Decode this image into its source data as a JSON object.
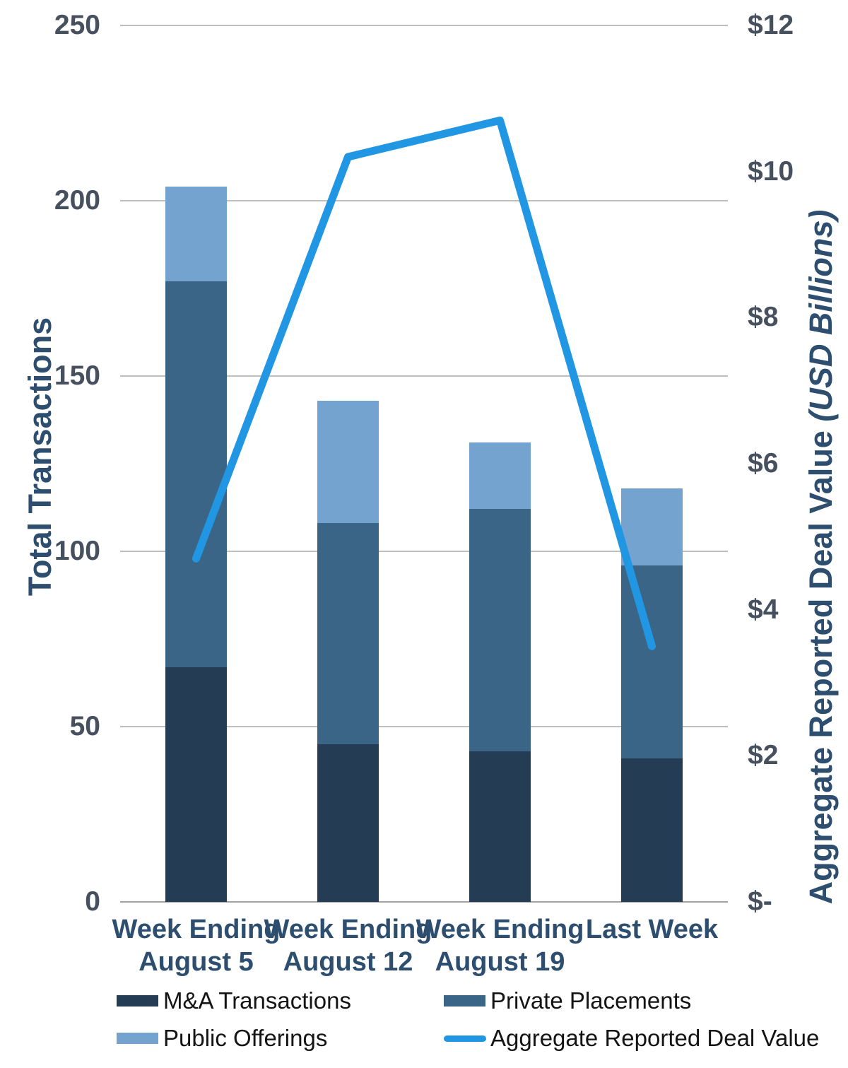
{
  "chart_data": {
    "type": "bar",
    "subtype": "stacked-bar-with-line-combo",
    "categories": [
      [
        "Week Ending",
        "August 5"
      ],
      [
        "Week Ending",
        "August 12"
      ],
      [
        "Week Ending",
        "August 19"
      ],
      [
        "Last Week"
      ]
    ],
    "series": [
      {
        "name": "M&A Transactions",
        "type": "bar",
        "axis": "left",
        "color": "#253c55",
        "values": [
          67,
          45,
          43,
          41
        ]
      },
      {
        "name": "Private Placements",
        "type": "bar",
        "axis": "left",
        "color": "#3b6586",
        "values": [
          110,
          63,
          69,
          55
        ]
      },
      {
        "name": "Public Offerings",
        "type": "bar",
        "axis": "left",
        "color": "#74a3cf",
        "values": [
          27,
          35,
          19,
          22
        ]
      },
      {
        "name": "Aggregate Reported Deal Value",
        "type": "line",
        "axis": "right",
        "color": "#2196e3",
        "values": [
          4.7,
          10.2,
          10.7,
          3.5
        ]
      }
    ],
    "bar_totals": [
      204,
      143,
      131,
      118
    ],
    "axis_left": {
      "title": "Total Transactions",
      "min": 0,
      "max": 250,
      "step": 50,
      "tick_labels": [
        "0",
        "50",
        "100",
        "150",
        "200",
        "250"
      ]
    },
    "axis_right": {
      "title": "Aggregate Reported Deal Value",
      "title_suffix_italic": "(USD Billions)",
      "min": 0,
      "max": 12,
      "step": 2,
      "tick_labels": [
        "$-",
        "$2",
        "$4",
        "$6",
        "$8",
        "$10",
        "$12"
      ]
    },
    "grid": true,
    "legend_position": "bottom",
    "legend": [
      {
        "label": "M&A Transactions",
        "swatch": "rect",
        "color": "#253c55"
      },
      {
        "label": "Private Placements",
        "swatch": "rect",
        "color": "#3b6586"
      },
      {
        "label": "Public Offerings",
        "swatch": "rect",
        "color": "#74a3cf"
      },
      {
        "label": "Aggregate Reported Deal Value",
        "swatch": "line",
        "color": "#2196e3"
      }
    ]
  },
  "colors": {
    "background": "#ffffff",
    "gridline": "#bfbfbf",
    "axis_line": "#a3a3a3",
    "tick_text": "#47505f",
    "axis_title_text": "#2d4e6f",
    "category_text": "#2d4e6f",
    "legend_text": "#141414"
  }
}
